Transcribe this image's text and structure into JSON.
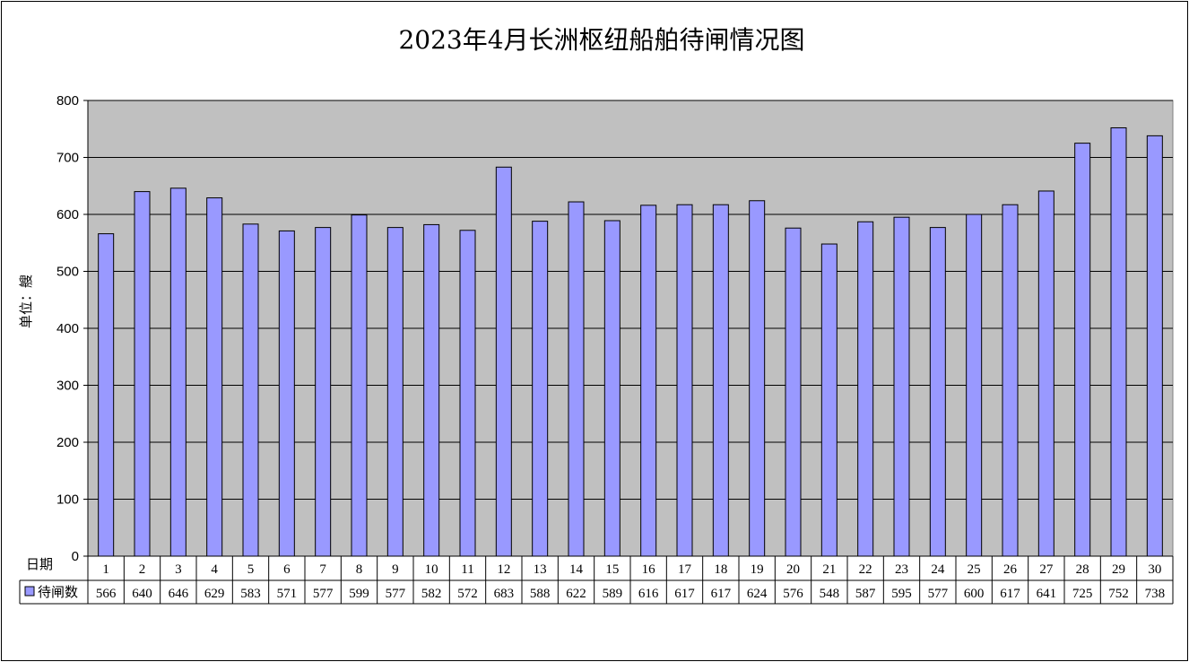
{
  "chart_data": {
    "type": "bar",
    "title": "2023年4月长洲枢纽船舶待闸情况图",
    "ylabel": "单位：艘",
    "xlabel": "日期",
    "ylim": [
      0,
      800
    ],
    "yticks": [
      0,
      100,
      200,
      300,
      400,
      500,
      600,
      700,
      800
    ],
    "grid": true,
    "legend_position": "table-left",
    "categories": [
      "1",
      "2",
      "3",
      "4",
      "5",
      "6",
      "7",
      "8",
      "9",
      "10",
      "11",
      "12",
      "13",
      "14",
      "15",
      "16",
      "17",
      "18",
      "19",
      "20",
      "21",
      "22",
      "23",
      "24",
      "25",
      "26",
      "27",
      "28",
      "29",
      "30"
    ],
    "series": [
      {
        "name": "待闸数",
        "color": "#9999ff",
        "values": [
          566,
          640,
          646,
          629,
          583,
          571,
          577,
          599,
          577,
          582,
          572,
          683,
          588,
          622,
          589,
          616,
          617,
          617,
          624,
          576,
          548,
          587,
          595,
          577,
          600,
          617,
          641,
          725,
          752,
          738
        ]
      }
    ],
    "plot_background": "#c0c0c0",
    "bar_stroke": "#000000"
  }
}
